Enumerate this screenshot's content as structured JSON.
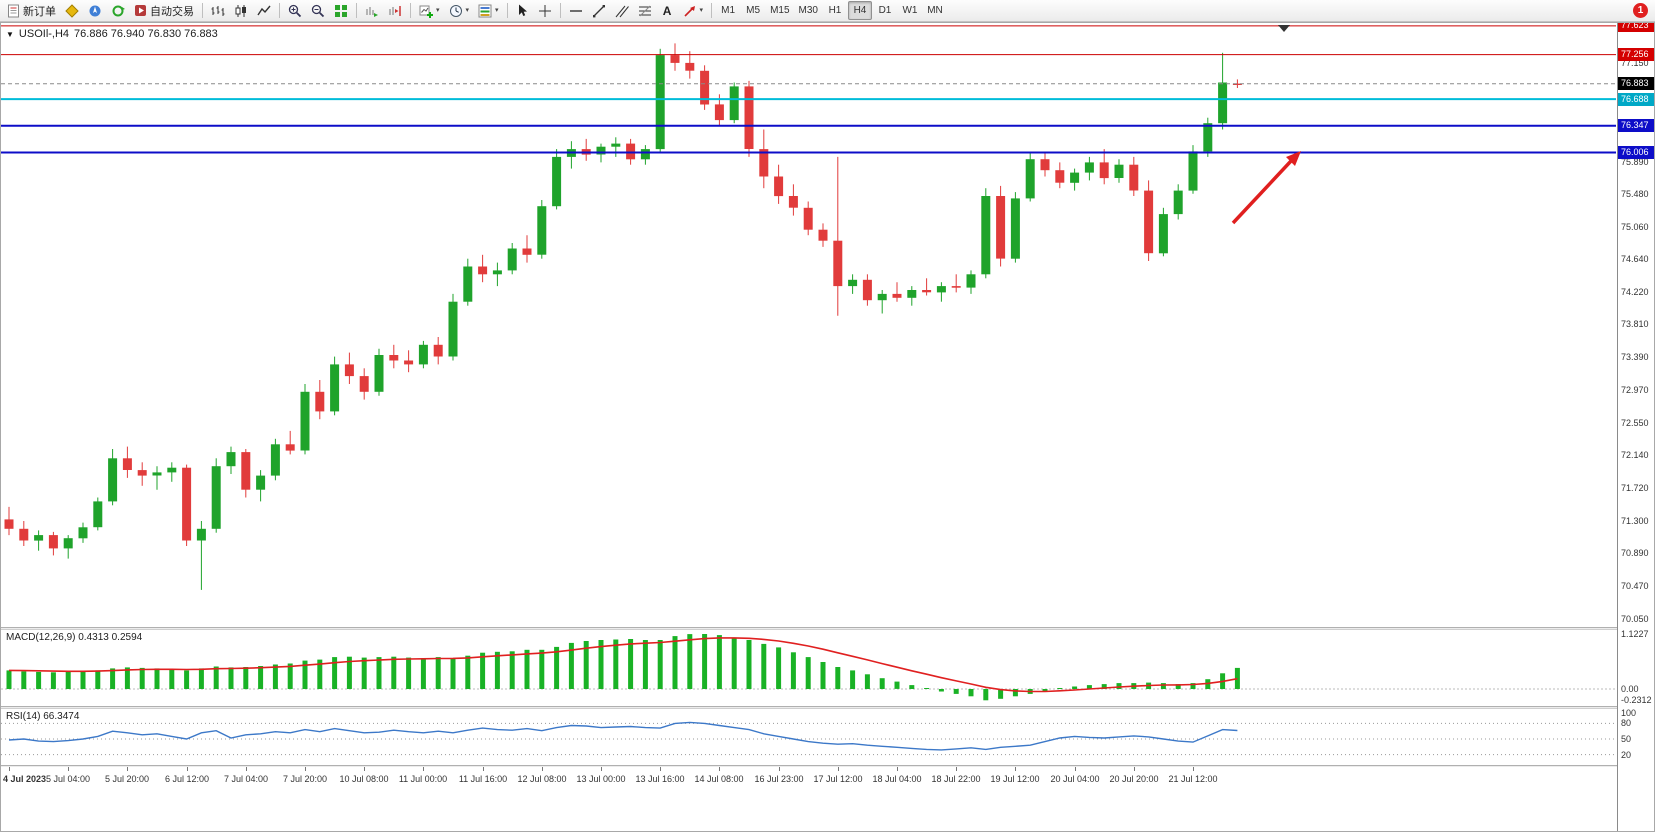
{
  "toolbar": {
    "new_order_label": "新订单",
    "auto_trading_label": "自动交易",
    "text_tool_label": "A",
    "caret": "▾",
    "timeframes": [
      "M1",
      "M5",
      "M15",
      "M30",
      "H1",
      "H4",
      "D1",
      "W1",
      "MN"
    ],
    "active_timeframe": "H4",
    "notification_count": "1"
  },
  "chart": {
    "collapse_icon": "▼",
    "title_symbol": "USOIl-,H4",
    "title_ohlc": "76.886 76.940 76.830 76.883",
    "price_axis_labels": [
      "77.150",
      "75.890",
      "75.480",
      "75.060",
      "74.640",
      "74.220",
      "73.810",
      "73.390",
      "72.970",
      "72.550",
      "72.140",
      "71.720",
      "71.300",
      "70.890",
      "70.470",
      "70.050"
    ],
    "price_lines": [
      {
        "name": "resistance-upper",
        "price": 77.623,
        "label": "77.623",
        "line": "#cc0000",
        "badge": "#d40000",
        "width": 1,
        "dash": ""
      },
      {
        "name": "resistance",
        "price": 77.256,
        "label": "77.256",
        "line": "#cc0000",
        "badge": "#d40000",
        "width": 1,
        "dash": ""
      },
      {
        "name": "bid-line",
        "price": 76.883,
        "label": "76.883",
        "line": "#8a8a8a",
        "badge": "#000000",
        "width": 1,
        "dash": "4 3"
      },
      {
        "name": "level-cyan",
        "price": 76.688,
        "label": "76.688",
        "line": "#00bcd9",
        "badge": "#00a8c6",
        "width": 2,
        "dash": ""
      },
      {
        "name": "support-1",
        "price": 76.347,
        "label": "76.347",
        "line": "#0d0dc8",
        "badge": "#0d0dc8",
        "width": 2,
        "dash": ""
      },
      {
        "name": "support-2",
        "price": 76.006,
        "label": "76.006",
        "line": "#0d0dc8",
        "badge": "#0d0dc8",
        "width": 2,
        "dash": ""
      }
    ],
    "x_axis_labels": [
      "4 Jul 2023",
      "5 Jul 04:00",
      "5 Jul 20:00",
      "6 Jul 12:00",
      "7 Jul 04:00",
      "7 Jul 20:00",
      "10 Jul 08:00",
      "11 Jul 00:00",
      "11 Jul 16:00",
      "12 Jul 08:00",
      "13 Jul 00:00",
      "13 Jul 16:00",
      "14 Jul 08:00",
      "16 Jul 23:00",
      "17 Jul 12:00",
      "18 Jul 04:00",
      "18 Jul 22:00",
      "19 Jul 12:00",
      "20 Jul 04:00",
      "20 Jul 20:00",
      "21 Jul 12:00"
    ]
  },
  "macd": {
    "header": "MACD(12,26,9) 0.4313 0.2594",
    "axis_labels": [
      "1.1227",
      "0.00",
      "-0.2312"
    ]
  },
  "rsi": {
    "header": "RSI(14) 66.3474",
    "axis_labels": [
      "100",
      "80",
      "50",
      "20"
    ],
    "levels": [
      80,
      50,
      20
    ]
  },
  "annotation_arrow": {
    "color": "#e01f1f"
  },
  "chart_data": {
    "type": "candlestick",
    "symbol": "USOIl-",
    "timeframe": "H4",
    "current_ohlc": {
      "open": 76.886,
      "high": 76.94,
      "low": 76.83,
      "close": 76.883
    },
    "price_range": [
      70.05,
      77.66
    ],
    "horizontal_levels": [
      77.623,
      77.256,
      76.883,
      76.688,
      76.347,
      76.006
    ],
    "candles": [
      [
        71.32,
        71.48,
        71.12,
        71.2
      ],
      [
        71.2,
        71.3,
        70.98,
        71.05
      ],
      [
        71.05,
        71.18,
        70.92,
        71.12
      ],
      [
        71.12,
        71.16,
        70.86,
        70.95
      ],
      [
        70.95,
        71.12,
        70.82,
        71.08
      ],
      [
        71.08,
        71.28,
        71.02,
        71.22
      ],
      [
        71.22,
        71.6,
        71.18,
        71.55
      ],
      [
        71.55,
        72.22,
        71.5,
        72.1
      ],
      [
        72.1,
        72.25,
        71.85,
        71.95
      ],
      [
        71.95,
        72.05,
        71.75,
        71.88
      ],
      [
        71.88,
        72.0,
        71.7,
        71.92
      ],
      [
        71.92,
        72.05,
        71.8,
        71.98
      ],
      [
        71.98,
        72.02,
        70.98,
        71.05
      ],
      [
        71.05,
        71.3,
        70.42,
        71.2
      ],
      [
        71.2,
        72.1,
        71.15,
        72.0
      ],
      [
        72.0,
        72.25,
        71.9,
        72.18
      ],
      [
        72.18,
        72.22,
        71.6,
        71.7
      ],
      [
        71.7,
        71.95,
        71.55,
        71.88
      ],
      [
        71.88,
        72.35,
        71.82,
        72.28
      ],
      [
        72.28,
        72.45,
        72.15,
        72.2
      ],
      [
        72.2,
        73.05,
        72.15,
        72.95
      ],
      [
        72.95,
        73.1,
        72.6,
        72.7
      ],
      [
        72.7,
        73.4,
        72.65,
        73.3
      ],
      [
        73.3,
        73.45,
        73.05,
        73.15
      ],
      [
        73.15,
        73.25,
        72.85,
        72.95
      ],
      [
        72.95,
        73.5,
        72.9,
        73.42
      ],
      [
        73.42,
        73.55,
        73.25,
        73.35
      ],
      [
        73.35,
        73.48,
        73.2,
        73.3
      ],
      [
        73.3,
        73.6,
        73.25,
        73.55
      ],
      [
        73.55,
        73.65,
        73.3,
        73.4
      ],
      [
        73.4,
        74.2,
        73.35,
        74.1
      ],
      [
        74.1,
        74.65,
        74.05,
        74.55
      ],
      [
        74.55,
        74.7,
        74.35,
        74.45
      ],
      [
        74.45,
        74.6,
        74.3,
        74.5
      ],
      [
        74.5,
        74.85,
        74.45,
        74.78
      ],
      [
        74.78,
        74.95,
        74.6,
        74.7
      ],
      [
        74.7,
        75.4,
        74.65,
        75.32
      ],
      [
        75.32,
        76.05,
        75.28,
        75.95
      ],
      [
        75.95,
        76.15,
        75.8,
        76.05
      ],
      [
        76.05,
        76.18,
        75.9,
        75.98
      ],
      [
        75.98,
        76.12,
        75.88,
        76.08
      ],
      [
        76.08,
        76.2,
        75.95,
        76.12
      ],
      [
        76.12,
        76.18,
        75.85,
        75.92
      ],
      [
        75.92,
        76.1,
        75.85,
        76.05
      ],
      [
        76.05,
        77.33,
        76.0,
        77.25
      ],
      [
        77.25,
        77.4,
        77.05,
        77.15
      ],
      [
        77.15,
        77.3,
        76.95,
        77.05
      ],
      [
        77.05,
        77.12,
        76.55,
        76.62
      ],
      [
        76.62,
        76.75,
        76.35,
        76.42
      ],
      [
        76.42,
        76.9,
        76.38,
        76.85
      ],
      [
        76.85,
        76.92,
        75.95,
        76.05
      ],
      [
        76.05,
        76.3,
        75.55,
        75.7
      ],
      [
        75.7,
        75.85,
        75.35,
        75.45
      ],
      [
        75.45,
        75.6,
        75.2,
        75.3
      ],
      [
        75.3,
        75.38,
        74.95,
        75.02
      ],
      [
        75.02,
        75.1,
        74.8,
        74.88
      ],
      [
        74.88,
        75.95,
        73.92,
        74.3
      ],
      [
        74.3,
        74.45,
        74.2,
        74.38
      ],
      [
        74.38,
        74.45,
        74.05,
        74.12
      ],
      [
        74.12,
        74.25,
        73.95,
        74.2
      ],
      [
        74.2,
        74.35,
        74.1,
        74.15
      ],
      [
        74.15,
        74.3,
        74.05,
        74.25
      ],
      [
        74.25,
        74.4,
        74.18,
        74.22
      ],
      [
        74.22,
        74.35,
        74.1,
        74.3
      ],
      [
        74.3,
        74.45,
        74.22,
        74.28
      ],
      [
        74.28,
        74.5,
        74.2,
        74.45
      ],
      [
        74.45,
        75.55,
        74.4,
        75.45
      ],
      [
        75.45,
        75.58,
        74.55,
        74.65
      ],
      [
        74.65,
        75.5,
        74.6,
        75.42
      ],
      [
        75.42,
        76.0,
        75.38,
        75.92
      ],
      [
        75.92,
        76.0,
        75.7,
        75.78
      ],
      [
        75.78,
        75.88,
        75.55,
        75.62
      ],
      [
        75.62,
        75.8,
        75.52,
        75.75
      ],
      [
        75.75,
        75.95,
        75.65,
        75.88
      ],
      [
        75.88,
        76.05,
        75.6,
        75.68
      ],
      [
        75.68,
        75.92,
        75.62,
        75.85
      ],
      [
        75.85,
        75.95,
        75.45,
        75.52
      ],
      [
        75.52,
        75.65,
        74.62,
        74.72
      ],
      [
        74.72,
        75.3,
        74.68,
        75.22
      ],
      [
        75.22,
        75.6,
        75.15,
        75.52
      ],
      [
        75.52,
        76.1,
        75.48,
        76.02
      ],
      [
        76.02,
        76.45,
        75.95,
        76.38
      ],
      [
        76.38,
        77.28,
        76.3,
        76.9
      ],
      [
        76.886,
        76.94,
        76.83,
        76.883
      ]
    ],
    "macd_histogram": [
      0.38,
      0.36,
      0.35,
      0.34,
      0.35,
      0.36,
      0.38,
      0.42,
      0.44,
      0.43,
      0.42,
      0.4,
      0.38,
      0.42,
      0.46,
      0.44,
      0.45,
      0.47,
      0.5,
      0.52,
      0.58,
      0.6,
      0.65,
      0.66,
      0.64,
      0.65,
      0.66,
      0.64,
      0.63,
      0.65,
      0.63,
      0.68,
      0.74,
      0.76,
      0.77,
      0.8,
      0.8,
      0.86,
      0.94,
      0.98,
      1.0,
      1.01,
      1.02,
      1.0,
      1.0,
      1.08,
      1.12,
      1.1227,
      1.1,
      1.05,
      1.0,
      0.92,
      0.85,
      0.75,
      0.65,
      0.55,
      0.45,
      0.38,
      0.3,
      0.22,
      0.15,
      0.08,
      0.02,
      -0.05,
      -0.1,
      -0.15,
      -0.2312,
      -0.2,
      -0.15,
      -0.1,
      -0.05,
      0.02,
      0.05,
      0.08,
      0.1,
      0.12,
      0.12,
      0.13,
      0.12,
      0.1,
      0.12,
      0.2,
      0.32,
      0.4313
    ],
    "rsi_values": [
      48,
      50,
      46,
      45,
      47,
      50,
      55,
      65,
      62,
      58,
      60,
      55,
      50,
      62,
      66,
      52,
      58,
      60,
      64,
      62,
      68,
      64,
      70,
      66,
      62,
      63,
      67,
      64,
      62,
      65,
      62,
      67,
      71,
      68,
      67,
      70,
      66,
      72,
      76,
      75,
      72,
      73,
      74,
      72,
      71,
      80,
      82,
      80,
      76,
      72,
      68,
      60,
      55,
      50,
      45,
      42,
      40,
      41,
      38,
      36,
      34,
      32,
      30,
      29,
      31,
      33,
      30,
      34,
      36,
      38,
      45,
      52,
      55,
      53,
      52,
      54,
      56,
      54,
      50,
      46,
      44,
      56,
      68,
      66.35
    ],
    "indicators": [
      {
        "name": "MACD",
        "params": [
          12,
          26,
          9
        ],
        "current": [
          0.4313,
          0.2594
        ],
        "range": [
          -0.2312,
          1.1227
        ]
      },
      {
        "name": "RSI",
        "params": [
          14
        ],
        "current": 66.3474,
        "range": [
          0,
          100
        ]
      }
    ]
  }
}
